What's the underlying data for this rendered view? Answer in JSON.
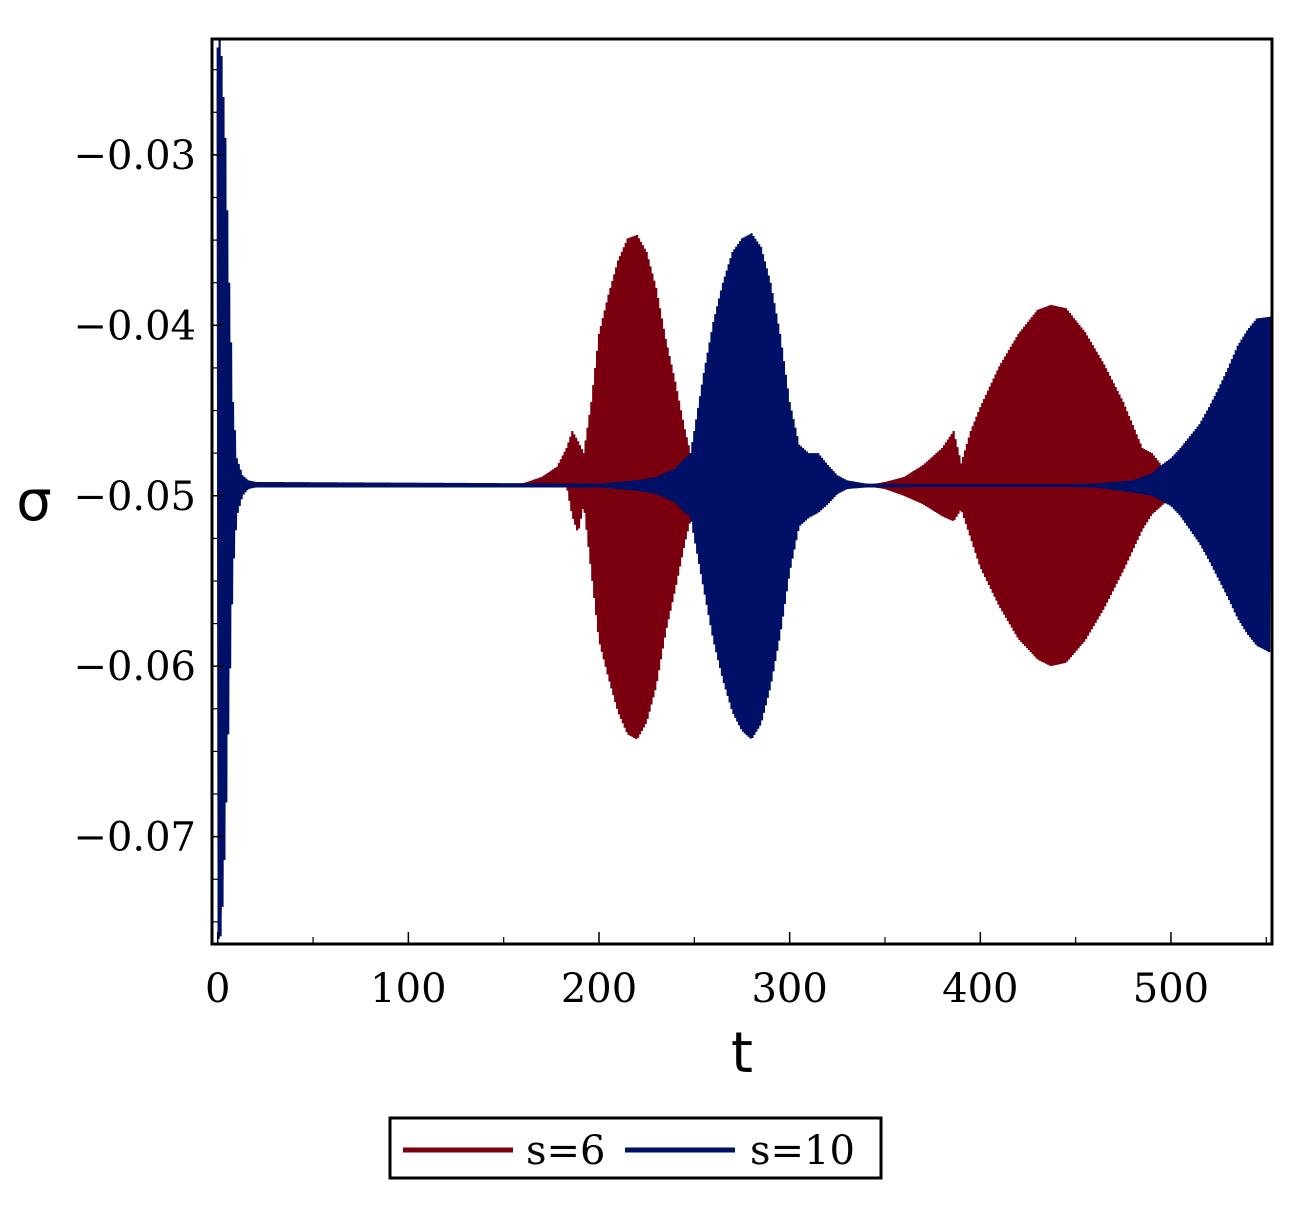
{
  "chart_data": {
    "type": "line",
    "title": "",
    "xlabel": "t",
    "ylabel": "σ",
    "xlim": [
      -3,
      553
    ],
    "ylim": [
      -0.0763,
      -0.0232
    ],
    "xticks": [
      0,
      100,
      200,
      300,
      400,
      500
    ],
    "xtick_labels": [
      "0",
      "100",
      "200",
      "300",
      "400",
      "500"
    ],
    "yticks": [
      -0.03,
      -0.04,
      -0.05,
      -0.06,
      -0.07
    ],
    "ytick_labels": [
      "−0.03",
      "−0.04",
      "−0.05",
      "−0.06",
      "−0.07"
    ],
    "grid": false,
    "legend_position": "bottom-center",
    "equilibrium": -0.0494,
    "series": [
      {
        "name": "s=6",
        "color": "#7a0010",
        "envelope": {
          "t": [
            0,
            1,
            2,
            4,
            6,
            8,
            10,
            13,
            16,
            20,
            150,
            160,
            170,
            178,
            183,
            186,
            189,
            192,
            196,
            200,
            205,
            210,
            215,
            220,
            225,
            230,
            235,
            240,
            245,
            248,
            250,
            255,
            300,
            340,
            350,
            360,
            370,
            380,
            386,
            390,
            395,
            400,
            410,
            420,
            430,
            437,
            445,
            455,
            465,
            475,
            485,
            490,
            495,
            500,
            510,
            520,
            530,
            540,
            550
          ],
          "upper": [
            -0.0256,
            -0.0261,
            -0.0275,
            -0.0355,
            -0.044,
            -0.0475,
            -0.0488,
            -0.0491,
            -0.0493,
            -0.0494,
            -0.0494,
            -0.0493,
            -0.0489,
            -0.0483,
            -0.0472,
            -0.0462,
            -0.0468,
            -0.0475,
            -0.0445,
            -0.0405,
            -0.0382,
            -0.0362,
            -0.0349,
            -0.0347,
            -0.0357,
            -0.0378,
            -0.0408,
            -0.0433,
            -0.0461,
            -0.0475,
            -0.0487,
            -0.0494,
            -0.0494,
            -0.0494,
            -0.0492,
            -0.0489,
            -0.0482,
            -0.0472,
            -0.0462,
            -0.0481,
            -0.0462,
            -0.0448,
            -0.0424,
            -0.0405,
            -0.0391,
            -0.0388,
            -0.039,
            -0.0404,
            -0.0423,
            -0.0445,
            -0.0472,
            -0.0475,
            -0.0482,
            -0.0487,
            -0.0492,
            -0.0494,
            -0.0494,
            -0.0494,
            -0.0494
          ],
          "lower": [
            -0.0755,
            -0.075,
            -0.074,
            -0.068,
            -0.058,
            -0.052,
            -0.0502,
            -0.0497,
            -0.0495,
            -0.0494,
            -0.0494,
            -0.0494,
            -0.0494,
            -0.0494,
            -0.0494,
            -0.0512,
            -0.0522,
            -0.0505,
            -0.0545,
            -0.0585,
            -0.0607,
            -0.0627,
            -0.064,
            -0.0643,
            -0.0633,
            -0.0612,
            -0.058,
            -0.0555,
            -0.0528,
            -0.0514,
            -0.0501,
            -0.0494,
            -0.0494,
            -0.0494,
            -0.0496,
            -0.05,
            -0.0505,
            -0.0512,
            -0.0515,
            -0.0508,
            -0.0525,
            -0.0542,
            -0.0565,
            -0.0584,
            -0.0596,
            -0.06,
            -0.0598,
            -0.0585,
            -0.0566,
            -0.0544,
            -0.052,
            -0.0511,
            -0.0506,
            -0.0501,
            -0.0496,
            -0.0494,
            -0.0494,
            -0.0494,
            -0.0494
          ]
        }
      },
      {
        "name": "s=10",
        "color": "#001066",
        "envelope": {
          "t": [
            0,
            1,
            2,
            4,
            6,
            8,
            10,
            13,
            16,
            20,
            200,
            220,
            230,
            240,
            245,
            248,
            250,
            255,
            260,
            265,
            270,
            275,
            280,
            285,
            290,
            295,
            300,
            305,
            310,
            315,
            320,
            325,
            330,
            340,
            420,
            460,
            480,
            490,
            495,
            500,
            505,
            510,
            515,
            520,
            525,
            530,
            535,
            540,
            545,
            552
          ],
          "upper": [
            -0.0237,
            -0.0232,
            -0.0242,
            -0.029,
            -0.0375,
            -0.0445,
            -0.0478,
            -0.0488,
            -0.0491,
            -0.0492,
            -0.0493,
            -0.0491,
            -0.0489,
            -0.0484,
            -0.0478,
            -0.0475,
            -0.0462,
            -0.0428,
            -0.0398,
            -0.0375,
            -0.0357,
            -0.0349,
            -0.0346,
            -0.0354,
            -0.0375,
            -0.0405,
            -0.0445,
            -0.047,
            -0.0475,
            -0.0475,
            -0.0482,
            -0.0488,
            -0.0491,
            -0.0493,
            -0.0494,
            -0.0493,
            -0.0491,
            -0.0487,
            -0.0482,
            -0.0478,
            -0.0472,
            -0.0465,
            -0.0458,
            -0.0448,
            -0.0437,
            -0.0425,
            -0.0412,
            -0.0403,
            -0.0396,
            -0.0395
          ],
          "lower": [
            -0.0758,
            -0.0762,
            -0.0755,
            -0.07,
            -0.062,
            -0.0545,
            -0.0512,
            -0.05,
            -0.0496,
            -0.0495,
            -0.0495,
            -0.0497,
            -0.0499,
            -0.0504,
            -0.051,
            -0.0512,
            -0.0525,
            -0.0555,
            -0.0585,
            -0.0608,
            -0.0627,
            -0.0638,
            -0.0643,
            -0.0634,
            -0.0612,
            -0.0582,
            -0.0545,
            -0.0518,
            -0.0513,
            -0.051,
            -0.0505,
            -0.0499,
            -0.0496,
            -0.0495,
            -0.0494,
            -0.0495,
            -0.0498,
            -0.05,
            -0.0503,
            -0.0506,
            -0.0512,
            -0.052,
            -0.0528,
            -0.0538,
            -0.0549,
            -0.056,
            -0.0572,
            -0.0581,
            -0.0588,
            -0.0592
          ]
        }
      }
    ]
  }
}
